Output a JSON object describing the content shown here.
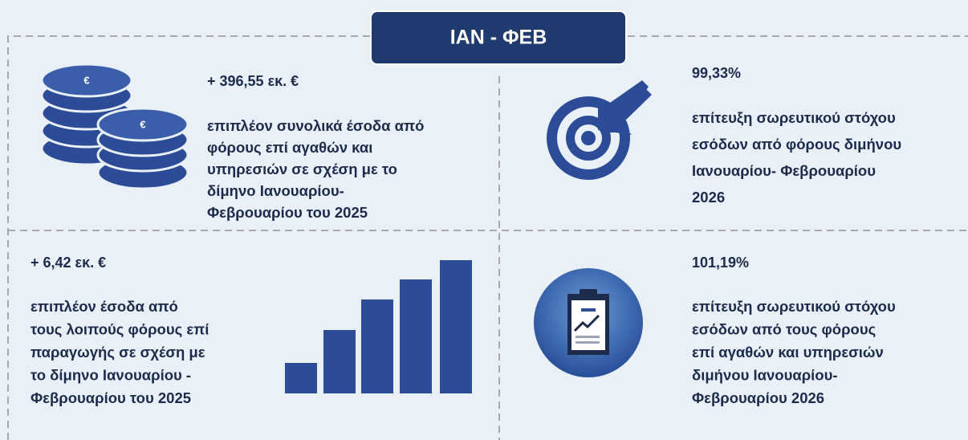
{
  "header": {
    "title": "ΙΑΝ - ΦΕΒ"
  },
  "panels": [
    {
      "headline": "+ 396,55 εκ. €",
      "description": [
        "επιπλέον συνολικά έσοδα από",
        "φόρους επί αγαθών και",
        "υπηρεσιών σε σχέση με το",
        "δίμηνο Ιανουαρίου-",
        "Φεβρουαρίου του 2025"
      ]
    },
    {
      "headline": "99,33%",
      "description": [
        "επίτευξη σωρευτικού στόχου",
        "εσόδων από φόρους διμήνου",
        "Ιανουαρίου- Φεβρουαρίου",
        "2026"
      ]
    },
    {
      "headline": "+ 6,42 εκ. €",
      "description": [
        "επιπλέον έσοδα από",
        "τους λοιπούς φόρους επί",
        "παραγωγής σε σχέση με",
        "το δίμηνο Ιανουαρίου -",
        "Φεβρουαρίου του 2025"
      ]
    },
    {
      "headline": "101,19%",
      "description": [
        "επίτευξη σωρευτικού στόχου",
        "εσόδων από τους φόρους",
        "επί αγαθών και υπηρεσιών",
        "διμήνου Ιανουαρίου-",
        "Φεβρουαρίου 2026"
      ]
    }
  ]
}
